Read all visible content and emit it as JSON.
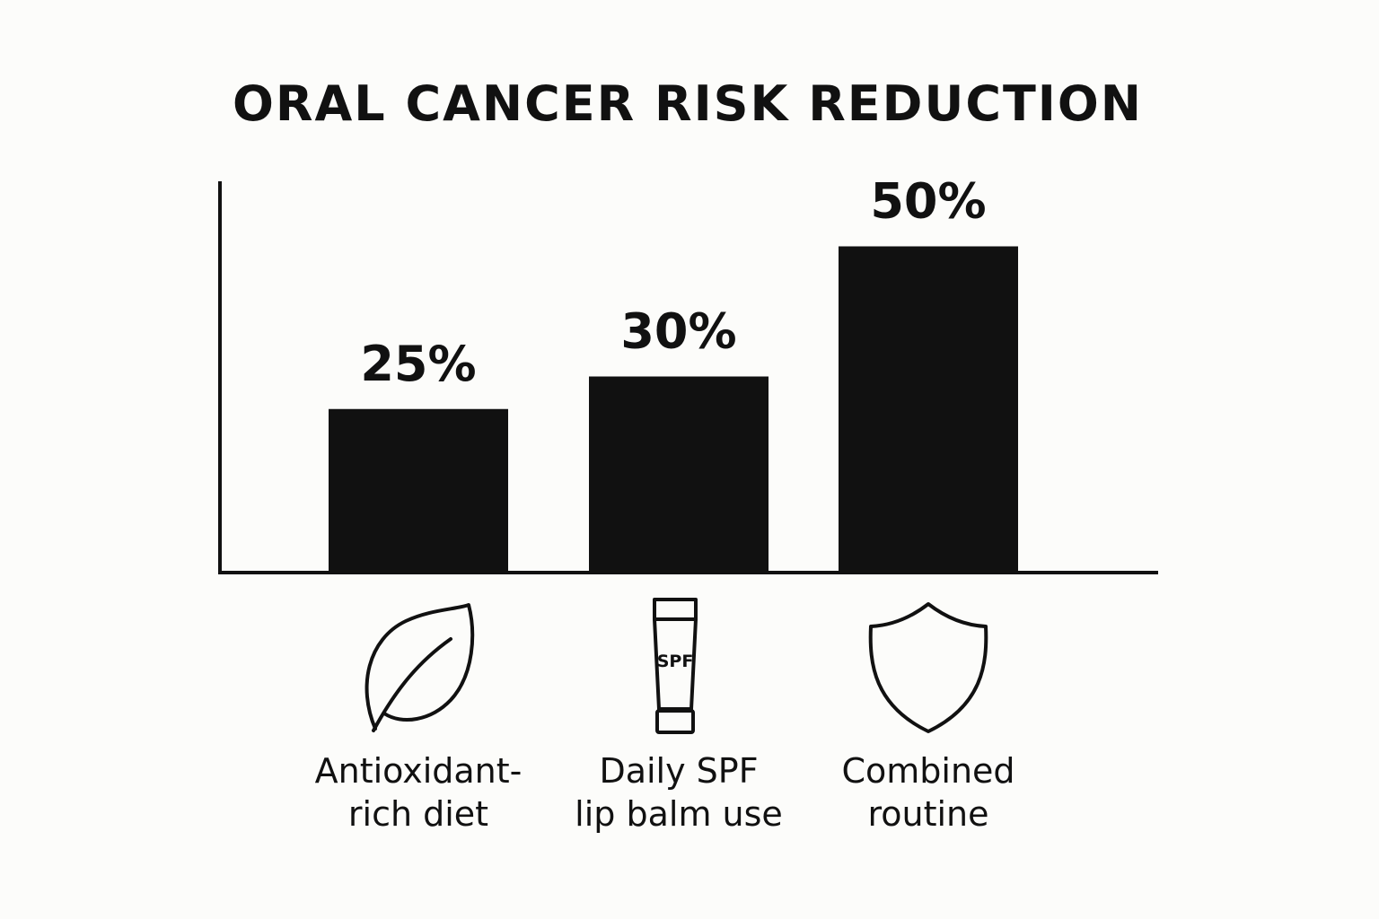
{
  "chart_data": {
    "type": "bar",
    "title": "ORAL CANCER RISK REDUCTION",
    "xlabel": "",
    "ylabel": "",
    "ylim": [
      0,
      60
    ],
    "grid": false,
    "bar_color": "#111111",
    "categories": [
      {
        "lines": [
          "Antioxidant-",
          "rich diet"
        ],
        "icon": "leaf-icon"
      },
      {
        "lines": [
          "Daily SPF",
          "lip balm use"
        ],
        "icon": "spf-tube-icon",
        "icon_text": "SPF"
      },
      {
        "lines": [
          "Combined",
          "routine"
        ],
        "icon": "shield-icon"
      }
    ],
    "values": [
      25,
      30,
      50
    ],
    "data_labels": [
      "25%",
      "30%",
      "50%"
    ]
  }
}
